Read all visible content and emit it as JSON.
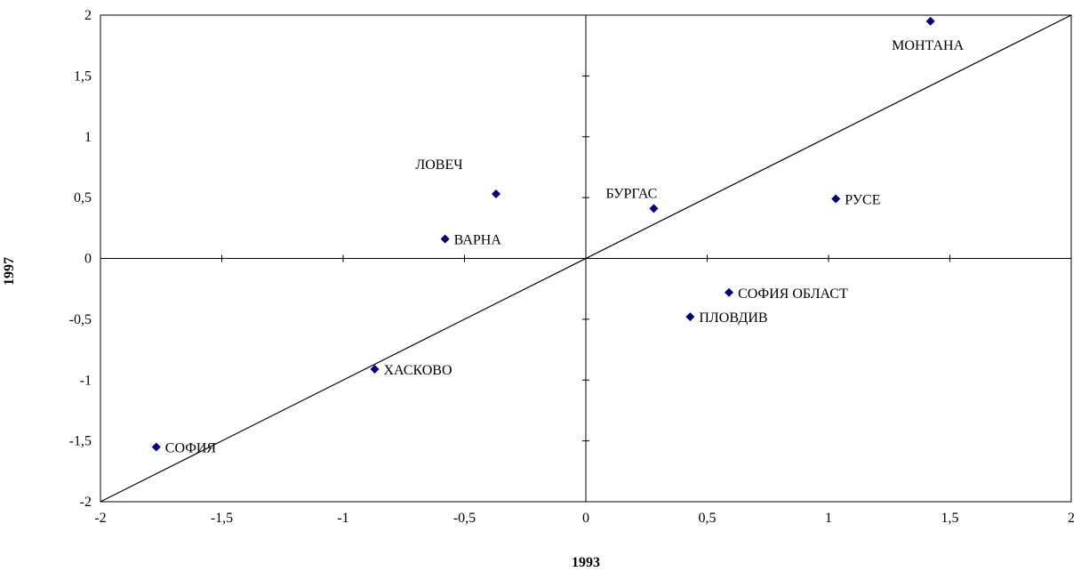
{
  "chart_data": {
    "type": "scatter",
    "title": "",
    "xlabel": "1993",
    "ylabel": "1997",
    "xlim": [
      -2,
      2
    ],
    "ylim": [
      -2,
      2
    ],
    "x_ticks": [
      -2,
      -1.5,
      -1,
      -0.5,
      0,
      0.5,
      1,
      1.5,
      2
    ],
    "y_ticks": [
      -2,
      -1.5,
      -1,
      -0.5,
      0,
      0.5,
      1,
      1.5,
      2
    ],
    "x_tick_labels": [
      "-2",
      "-1,5",
      "-1",
      "-0,5",
      "0",
      "0,5",
      "1",
      "1,5",
      "2"
    ],
    "y_tick_labels": [
      "-2",
      "-1,5",
      "-1",
      "-0,5",
      "0",
      "0,5",
      "1",
      "1,5",
      "2"
    ],
    "marker_color": "#000080",
    "grid": false,
    "reference_line": {
      "from": [
        -2,
        -2
      ],
      "to": [
        2,
        2
      ]
    },
    "points": [
      {
        "label": "МОНТАНА",
        "x": 1.42,
        "y": 1.95,
        "label_pos": "below"
      },
      {
        "label": "ЛОВЕЧ",
        "x": -0.37,
        "y": 0.53,
        "label_pos": "above-left"
      },
      {
        "label": "БУРГАС",
        "x": 0.28,
        "y": 0.41,
        "label_pos": "above"
      },
      {
        "label": "РУСЕ",
        "x": 1.03,
        "y": 0.49,
        "label_pos": "right"
      },
      {
        "label": "ВАРНА",
        "x": -0.58,
        "y": 0.16,
        "label_pos": "right"
      },
      {
        "label": "СОФИЯ ОБЛАСТ",
        "x": 0.59,
        "y": -0.28,
        "label_pos": "right"
      },
      {
        "label": "ПЛОВДИВ",
        "x": 0.43,
        "y": -0.48,
        "label_pos": "right"
      },
      {
        "label": "ХАСКОВО",
        "x": -0.87,
        "y": -0.91,
        "label_pos": "right"
      },
      {
        "label": "СОФИЯ",
        "x": -1.77,
        "y": -1.55,
        "label_pos": "right"
      }
    ]
  }
}
